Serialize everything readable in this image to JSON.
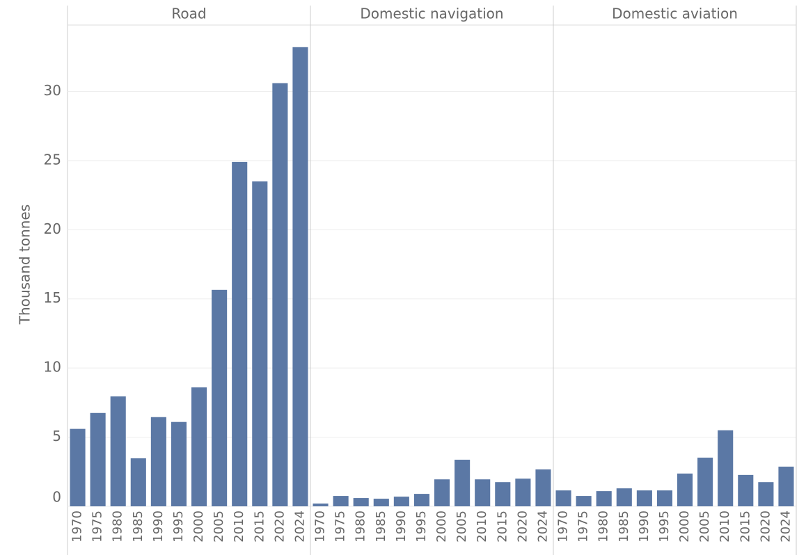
{
  "chart_data": {
    "type": "bar",
    "y_label": "Thousand tonnes",
    "categories": [
      "1970",
      "1975",
      "1980",
      "1985",
      "1990",
      "1995",
      "2000",
      "2005",
      "2010",
      "2015",
      "2020",
      "2024"
    ],
    "facets": [
      {
        "title": "Road",
        "values": [
          5.6,
          6.75,
          7.95,
          3.47,
          6.45,
          6.1,
          8.6,
          15.65,
          24.9,
          23.5,
          30.6,
          33.2
        ]
      },
      {
        "title": "Domestic navigation",
        "values": [
          0.2,
          0.75,
          0.6,
          0.55,
          0.7,
          0.9,
          1.95,
          3.37,
          1.95,
          1.75,
          2.0,
          2.67
        ]
      },
      {
        "title": "Domestic aviation",
        "values": [
          1.15,
          0.75,
          1.1,
          1.3,
          1.15,
          1.15,
          2.37,
          3.52,
          5.5,
          2.27,
          1.75,
          2.87
        ]
      }
    ],
    "color": "#5b78a5",
    "ylim": [
      0,
      34.8
    ],
    "yticks": [
      0,
      5,
      10,
      15,
      20,
      25,
      30
    ],
    "grid": true
  }
}
